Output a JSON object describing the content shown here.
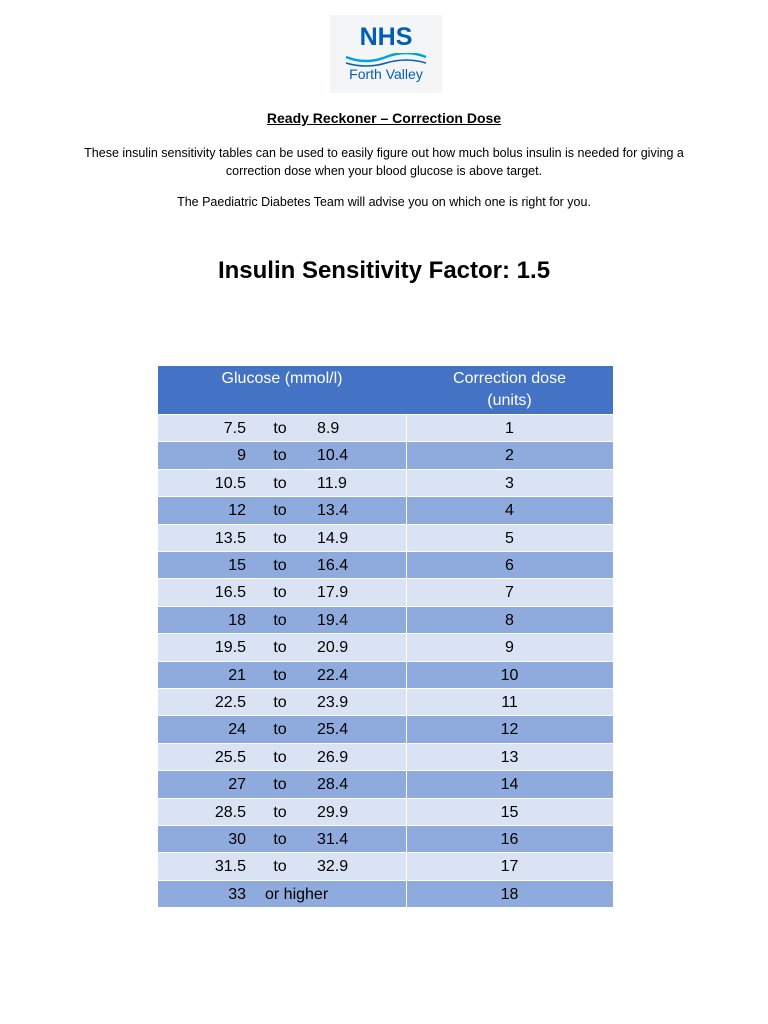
{
  "logo": {
    "name": "NHS",
    "subtitle": "Forth Valley"
  },
  "title": "Ready Reckoner – Correction Dose",
  "paragraphs": [
    "These insulin sensitivity tables can be used to easily figure out how much bolus insulin is needed for giving a correction dose when your blood glucose is above target.",
    "The Paediatric Diabetes Team will advise you on which one is right for you."
  ],
  "heading": "Insulin Sensitivity Factor: 1.5",
  "table": {
    "header": [
      "Glucose (mmol/l)",
      "Correction dose (units)"
    ],
    "rows": [
      [
        "7.5",
        "to",
        "8.9",
        "1"
      ],
      [
        "9",
        "to",
        "10.4",
        "2"
      ],
      [
        "10.5",
        "to",
        "11.9",
        "3"
      ],
      [
        "12",
        "to",
        "13.4",
        "4"
      ],
      [
        "13.5",
        "to",
        "14.9",
        "5"
      ],
      [
        "15",
        "to",
        "16.4",
        "6"
      ],
      [
        "16.5",
        "to",
        "17.9",
        "7"
      ],
      [
        "18",
        "to",
        "19.4",
        "8"
      ],
      [
        "19.5",
        "to",
        "20.9",
        "9"
      ],
      [
        "21",
        "to",
        "22.4",
        "10"
      ],
      [
        "22.5",
        "to",
        "23.9",
        "11"
      ],
      [
        "24",
        "to",
        "25.4",
        "12"
      ],
      [
        "25.5",
        "to",
        "26.9",
        "13"
      ],
      [
        "27",
        "to",
        "28.4",
        "14"
      ],
      [
        "28.5",
        "to",
        "29.9",
        "15"
      ],
      [
        "30",
        "to",
        "31.4",
        "16"
      ],
      [
        "31.5",
        "to",
        "32.9",
        "17"
      ],
      [
        "33",
        "or higher",
        "18"
      ]
    ]
  }
}
